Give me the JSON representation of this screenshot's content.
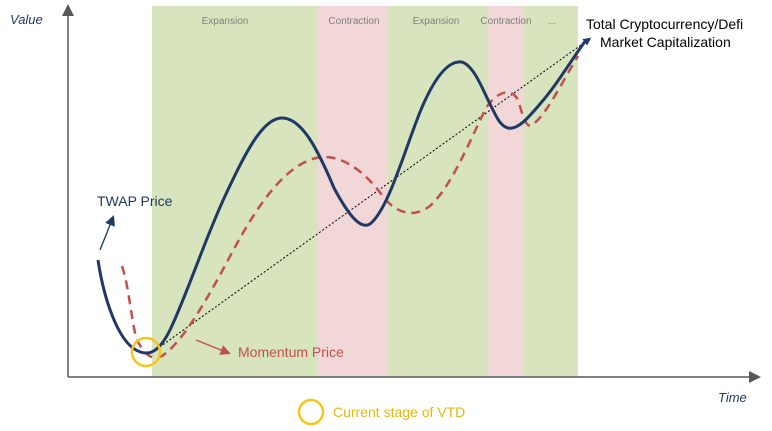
{
  "axes": {
    "y_label": "Value",
    "x_label": "Time"
  },
  "phases": [
    {
      "label": "Expansion",
      "kind": "expansion"
    },
    {
      "label": "Contraction",
      "kind": "contraction"
    },
    {
      "label": "Expansion",
      "kind": "expansion"
    },
    {
      "label": "Contraction",
      "kind": "contraction"
    },
    {
      "label": "...",
      "kind": "expansion"
    }
  ],
  "series": {
    "market": {
      "line1": "Total Cryptocurrency/Defi",
      "line2": "Market Capitalization"
    },
    "twap": {
      "label": "TWAP Price"
    },
    "momentum": {
      "label": "Momentum Price"
    }
  },
  "legend": {
    "vtd_label": "Current stage of VTD"
  },
  "colors": {
    "expansion": "#d7e4bd",
    "contraction": "#f2d7d9",
    "twap": "#1f3864",
    "momentum": "#c0504d",
    "market_trend": "#000000",
    "vtd_marker": "#f5c518",
    "axis": "#595959"
  }
}
